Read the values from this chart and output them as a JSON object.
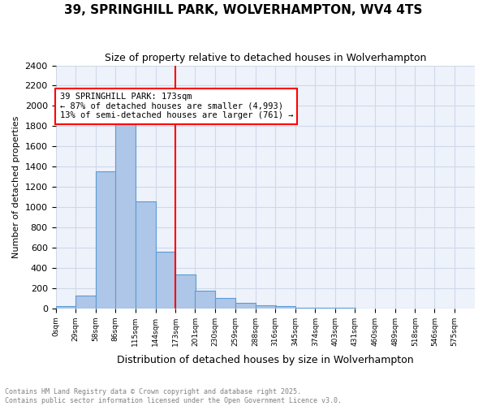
{
  "title1": "39, SPRINGHILL PARK, WOLVERHAMPTON, WV4 4TS",
  "title2": "Size of property relative to detached houses in Wolverhampton",
  "xlabel": "Distribution of detached houses by size in Wolverhampton",
  "ylabel": "Number of detached properties",
  "footer": "Contains HM Land Registry data © Crown copyright and database right 2025.\nContains public sector information licensed under the Open Government Licence v3.0.",
  "bin_labels": [
    "0sqm",
    "29sqm",
    "58sqm",
    "86sqm",
    "115sqm",
    "144sqm",
    "173sqm",
    "201sqm",
    "230sqm",
    "259sqm",
    "288sqm",
    "316sqm",
    "345sqm",
    "374sqm",
    "403sqm",
    "431sqm",
    "460sqm",
    "489sqm",
    "518sqm",
    "546sqm",
    "575sqm"
  ],
  "bar_values": [
    20,
    130,
    1355,
    1910,
    1055,
    560,
    335,
    175,
    105,
    58,
    30,
    22,
    10,
    5,
    3,
    2,
    2,
    0,
    0,
    0
  ],
  "bin_width": 29,
  "bin_starts": [
    0,
    29,
    58,
    86,
    115,
    144,
    173,
    201,
    230,
    259,
    288,
    316,
    345,
    374,
    403,
    431,
    460,
    489,
    518,
    546
  ],
  "property_value": 173,
  "annotation_text": "39 SPRINGHILL PARK: 173sqm\n← 87% of detached houses are smaller (4,993)\n13% of semi-detached houses are larger (761) →",
  "bar_color": "#AEC6E8",
  "bar_edge_color": "#5B9BD5",
  "vline_color": "red",
  "vline_x": 173,
  "annotation_box_color": "white",
  "annotation_box_edge": "red",
  "grid_color": "#D0D8E8",
  "bg_color": "#EEF2FA",
  "ylim": [
    0,
    2400
  ],
  "yticks": [
    0,
    200,
    400,
    600,
    800,
    1000,
    1200,
    1400,
    1600,
    1800,
    2000,
    2200,
    2400
  ]
}
